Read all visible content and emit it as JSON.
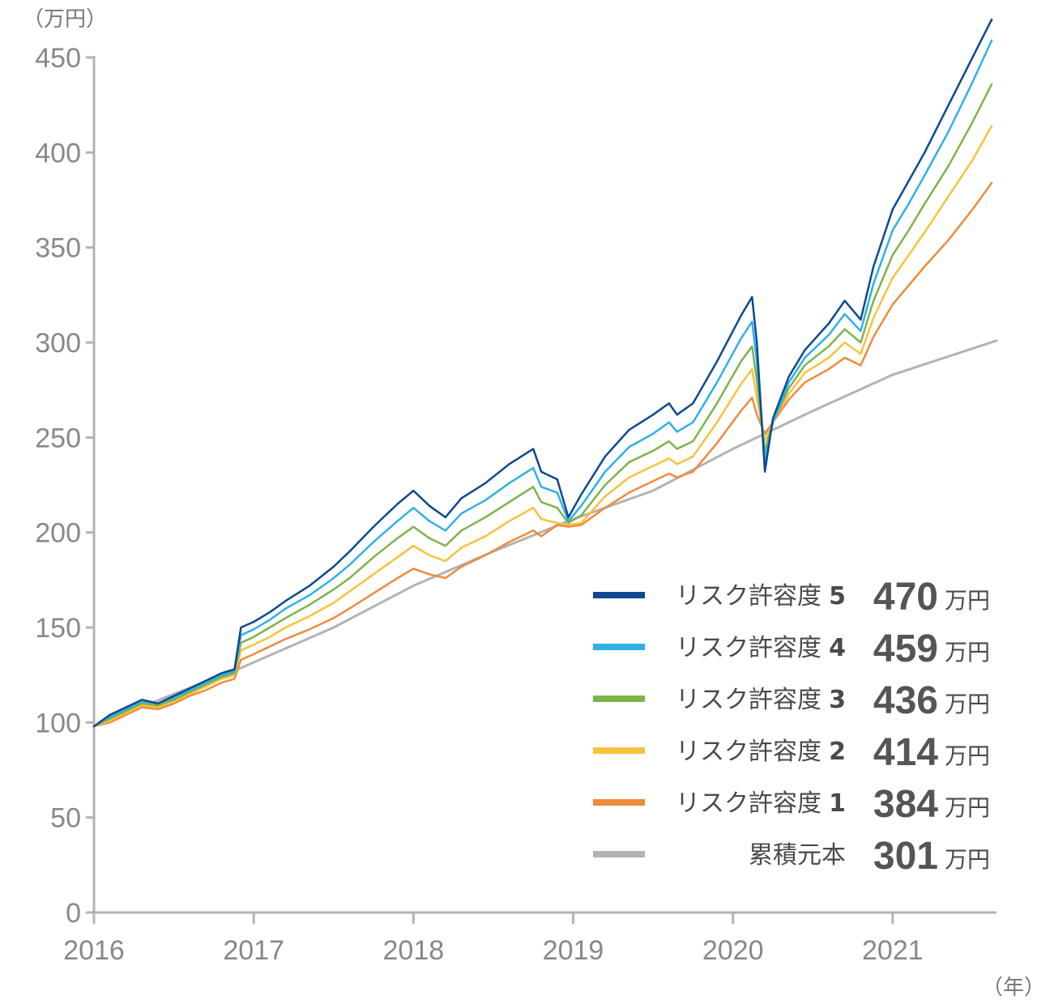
{
  "chart_data": {
    "type": "line",
    "y_unit_label": "（万円）",
    "x_unit_label": "（年）",
    "ylim": [
      0,
      450
    ],
    "yticks": [
      0,
      50,
      100,
      150,
      200,
      250,
      300,
      350,
      400,
      450
    ],
    "xlim": [
      2016.0,
      2021.65
    ],
    "xticks": [
      "2016",
      "2017",
      "2018",
      "2019",
      "2020",
      "2021"
    ],
    "grid": false,
    "legend_position": "bottom-right",
    "series": [
      {
        "name": "リスク許容度",
        "level": "5",
        "final_value": "470",
        "unit": "万円",
        "color": "#0d4a8f",
        "points": [
          [
            2016.0,
            98
          ],
          [
            2016.1,
            104
          ],
          [
            2016.2,
            108
          ],
          [
            2016.3,
            112
          ],
          [
            2016.4,
            110
          ],
          [
            2016.5,
            114
          ],
          [
            2016.6,
            118
          ],
          [
            2016.7,
            122
          ],
          [
            2016.8,
            126
          ],
          [
            2016.88,
            128
          ],
          [
            2016.92,
            150
          ],
          [
            2017.0,
            153
          ],
          [
            2017.1,
            158
          ],
          [
            2017.2,
            164
          ],
          [
            2017.35,
            172
          ],
          [
            2017.5,
            182
          ],
          [
            2017.6,
            190
          ],
          [
            2017.75,
            203
          ],
          [
            2017.9,
            215
          ],
          [
            2018.0,
            222
          ],
          [
            2018.1,
            214
          ],
          [
            2018.2,
            208
          ],
          [
            2018.3,
            218
          ],
          [
            2018.45,
            226
          ],
          [
            2018.6,
            236
          ],
          [
            2018.75,
            244
          ],
          [
            2018.8,
            232
          ],
          [
            2018.9,
            228
          ],
          [
            2018.97,
            208
          ],
          [
            2019.05,
            220
          ],
          [
            2019.2,
            240
          ],
          [
            2019.35,
            254
          ],
          [
            2019.5,
            262
          ],
          [
            2019.6,
            268
          ],
          [
            2019.65,
            262
          ],
          [
            2019.75,
            268
          ],
          [
            2019.9,
            290
          ],
          [
            2020.05,
            314
          ],
          [
            2020.12,
            324
          ],
          [
            2020.15,
            300
          ],
          [
            2020.2,
            232
          ],
          [
            2020.25,
            260
          ],
          [
            2020.35,
            282
          ],
          [
            2020.45,
            296
          ],
          [
            2020.6,
            310
          ],
          [
            2020.7,
            322
          ],
          [
            2020.8,
            312
          ],
          [
            2020.88,
            340
          ],
          [
            2021.0,
            370
          ],
          [
            2021.1,
            385
          ],
          [
            2021.2,
            400
          ],
          [
            2021.35,
            425
          ],
          [
            2021.5,
            450
          ],
          [
            2021.62,
            470
          ]
        ]
      },
      {
        "name": "リスク許容度",
        "level": "4",
        "final_value": "459",
        "unit": "万円",
        "color": "#2fb0e8",
        "points": [
          [
            2016.0,
            98
          ],
          [
            2016.1,
            103
          ],
          [
            2016.2,
            107
          ],
          [
            2016.3,
            111
          ],
          [
            2016.4,
            110
          ],
          [
            2016.5,
            113
          ],
          [
            2016.6,
            117
          ],
          [
            2016.7,
            121
          ],
          [
            2016.8,
            125
          ],
          [
            2016.88,
            127
          ],
          [
            2016.92,
            146
          ],
          [
            2017.0,
            149
          ],
          [
            2017.1,
            154
          ],
          [
            2017.2,
            160
          ],
          [
            2017.35,
            167
          ],
          [
            2017.5,
            176
          ],
          [
            2017.6,
            183
          ],
          [
            2017.75,
            195
          ],
          [
            2017.9,
            206
          ],
          [
            2018.0,
            213
          ],
          [
            2018.1,
            206
          ],
          [
            2018.2,
            201
          ],
          [
            2018.3,
            210
          ],
          [
            2018.45,
            217
          ],
          [
            2018.6,
            226
          ],
          [
            2018.75,
            234
          ],
          [
            2018.8,
            224
          ],
          [
            2018.9,
            221
          ],
          [
            2018.97,
            206
          ],
          [
            2019.05,
            214
          ],
          [
            2019.2,
            232
          ],
          [
            2019.35,
            245
          ],
          [
            2019.5,
            252
          ],
          [
            2019.6,
            258
          ],
          [
            2019.65,
            253
          ],
          [
            2019.75,
            258
          ],
          [
            2019.9,
            279
          ],
          [
            2020.05,
            302
          ],
          [
            2020.12,
            311
          ],
          [
            2020.15,
            290
          ],
          [
            2020.2,
            238
          ],
          [
            2020.25,
            258
          ],
          [
            2020.35,
            279
          ],
          [
            2020.45,
            292
          ],
          [
            2020.6,
            304
          ],
          [
            2020.7,
            315
          ],
          [
            2020.8,
            306
          ],
          [
            2020.88,
            331
          ],
          [
            2021.0,
            359
          ],
          [
            2021.1,
            373
          ],
          [
            2021.2,
            388
          ],
          [
            2021.35,
            411
          ],
          [
            2021.5,
            437
          ],
          [
            2021.62,
            459
          ]
        ]
      },
      {
        "name": "リスク許容度",
        "level": "3",
        "final_value": "436",
        "unit": "万円",
        "color": "#7fb34a",
        "points": [
          [
            2016.0,
            98
          ],
          [
            2016.1,
            102
          ],
          [
            2016.2,
            106
          ],
          [
            2016.3,
            110
          ],
          [
            2016.4,
            109
          ],
          [
            2016.5,
            112
          ],
          [
            2016.6,
            116
          ],
          [
            2016.7,
            120
          ],
          [
            2016.8,
            124
          ],
          [
            2016.88,
            126
          ],
          [
            2016.92,
            142
          ],
          [
            2017.0,
            145
          ],
          [
            2017.1,
            150
          ],
          [
            2017.2,
            155
          ],
          [
            2017.35,
            162
          ],
          [
            2017.5,
            170
          ],
          [
            2017.6,
            176
          ],
          [
            2017.75,
            187
          ],
          [
            2017.9,
            197
          ],
          [
            2018.0,
            203
          ],
          [
            2018.1,
            197
          ],
          [
            2018.2,
            193
          ],
          [
            2018.3,
            201
          ],
          [
            2018.45,
            208
          ],
          [
            2018.6,
            216
          ],
          [
            2018.75,
            224
          ],
          [
            2018.8,
            216
          ],
          [
            2018.9,
            213
          ],
          [
            2018.97,
            205
          ],
          [
            2019.05,
            209
          ],
          [
            2019.2,
            225
          ],
          [
            2019.35,
            237
          ],
          [
            2019.5,
            243
          ],
          [
            2019.6,
            248
          ],
          [
            2019.65,
            244
          ],
          [
            2019.75,
            248
          ],
          [
            2019.9,
            268
          ],
          [
            2020.05,
            290
          ],
          [
            2020.12,
            298
          ],
          [
            2020.15,
            280
          ],
          [
            2020.2,
            243
          ],
          [
            2020.25,
            258
          ],
          [
            2020.35,
            276
          ],
          [
            2020.45,
            288
          ],
          [
            2020.6,
            298
          ],
          [
            2020.7,
            307
          ],
          [
            2020.8,
            300
          ],
          [
            2020.88,
            322
          ],
          [
            2021.0,
            346
          ],
          [
            2021.1,
            359
          ],
          [
            2021.2,
            373
          ],
          [
            2021.35,
            393
          ],
          [
            2021.5,
            416
          ],
          [
            2021.62,
            436
          ]
        ]
      },
      {
        "name": "リスク許容度",
        "level": "2",
        "final_value": "414",
        "unit": "万円",
        "color": "#f9c23c",
        "points": [
          [
            2016.0,
            98
          ],
          [
            2016.1,
            101
          ],
          [
            2016.2,
            105
          ],
          [
            2016.3,
            109
          ],
          [
            2016.4,
            108
          ],
          [
            2016.5,
            111
          ],
          [
            2016.6,
            115
          ],
          [
            2016.7,
            119
          ],
          [
            2016.8,
            123
          ],
          [
            2016.88,
            125
          ],
          [
            2016.92,
            138
          ],
          [
            2017.0,
            141
          ],
          [
            2017.1,
            145
          ],
          [
            2017.2,
            150
          ],
          [
            2017.35,
            156
          ],
          [
            2017.5,
            163
          ],
          [
            2017.6,
            169
          ],
          [
            2017.75,
            178
          ],
          [
            2017.9,
            187
          ],
          [
            2018.0,
            193
          ],
          [
            2018.1,
            188
          ],
          [
            2018.2,
            185
          ],
          [
            2018.3,
            192
          ],
          [
            2018.45,
            198
          ],
          [
            2018.6,
            206
          ],
          [
            2018.75,
            213
          ],
          [
            2018.8,
            207
          ],
          [
            2018.9,
            205
          ],
          [
            2018.97,
            204
          ],
          [
            2019.05,
            205
          ],
          [
            2019.2,
            219
          ],
          [
            2019.35,
            229
          ],
          [
            2019.5,
            235
          ],
          [
            2019.6,
            239
          ],
          [
            2019.65,
            236
          ],
          [
            2019.75,
            240
          ],
          [
            2019.9,
            258
          ],
          [
            2020.05,
            278
          ],
          [
            2020.12,
            286
          ],
          [
            2020.15,
            271
          ],
          [
            2020.2,
            248
          ],
          [
            2020.25,
            258
          ],
          [
            2020.35,
            273
          ],
          [
            2020.45,
            284
          ],
          [
            2020.6,
            292
          ],
          [
            2020.7,
            300
          ],
          [
            2020.8,
            294
          ],
          [
            2020.88,
            313
          ],
          [
            2021.0,
            334
          ],
          [
            2021.1,
            346
          ],
          [
            2021.2,
            358
          ],
          [
            2021.35,
            377
          ],
          [
            2021.5,
            396
          ],
          [
            2021.62,
            414
          ]
        ]
      },
      {
        "name": "リスク許容度",
        "level": "1",
        "final_value": "384",
        "unit": "万円",
        "color": "#f08a3c",
        "points": [
          [
            2016.0,
            98
          ],
          [
            2016.1,
            100
          ],
          [
            2016.2,
            104
          ],
          [
            2016.3,
            108
          ],
          [
            2016.4,
            107
          ],
          [
            2016.5,
            110
          ],
          [
            2016.6,
            114
          ],
          [
            2016.7,
            117
          ],
          [
            2016.8,
            121
          ],
          [
            2016.88,
            123
          ],
          [
            2016.92,
            133
          ],
          [
            2017.0,
            136
          ],
          [
            2017.1,
            140
          ],
          [
            2017.2,
            144
          ],
          [
            2017.35,
            149
          ],
          [
            2017.5,
            155
          ],
          [
            2017.6,
            160
          ],
          [
            2017.75,
            168
          ],
          [
            2017.9,
            176
          ],
          [
            2018.0,
            181
          ],
          [
            2018.1,
            178
          ],
          [
            2018.2,
            176
          ],
          [
            2018.3,
            182
          ],
          [
            2018.45,
            188
          ],
          [
            2018.6,
            195
          ],
          [
            2018.75,
            201
          ],
          [
            2018.8,
            198
          ],
          [
            2018.9,
            204
          ],
          [
            2018.97,
            203
          ],
          [
            2019.05,
            204
          ],
          [
            2019.2,
            213
          ],
          [
            2019.35,
            221
          ],
          [
            2019.5,
            227
          ],
          [
            2019.6,
            231
          ],
          [
            2019.65,
            229
          ],
          [
            2019.75,
            232
          ],
          [
            2019.9,
            247
          ],
          [
            2020.05,
            264
          ],
          [
            2020.12,
            271
          ],
          [
            2020.15,
            262
          ],
          [
            2020.2,
            252
          ],
          [
            2020.25,
            258
          ],
          [
            2020.35,
            270
          ],
          [
            2020.45,
            279
          ],
          [
            2020.6,
            286
          ],
          [
            2020.7,
            292
          ],
          [
            2020.8,
            288
          ],
          [
            2020.88,
            303
          ],
          [
            2021.0,
            320
          ],
          [
            2021.1,
            330
          ],
          [
            2021.2,
            340
          ],
          [
            2021.35,
            354
          ],
          [
            2021.5,
            370
          ],
          [
            2021.62,
            384
          ]
        ]
      },
      {
        "name": "累積元本",
        "level": "",
        "final_value": "301",
        "unit": "万円",
        "color": "#b3b3b3",
        "points": [
          [
            2016.0,
            98
          ],
          [
            2016.5,
            115
          ],
          [
            2016.9,
            128
          ],
          [
            2017.5,
            150
          ],
          [
            2018.0,
            172
          ],
          [
            2018.5,
            190
          ],
          [
            2019.0,
            207
          ],
          [
            2019.5,
            222
          ],
          [
            2020.0,
            244
          ],
          [
            2020.5,
            264
          ],
          [
            2021.0,
            283
          ],
          [
            2021.65,
            301
          ]
        ]
      }
    ]
  }
}
